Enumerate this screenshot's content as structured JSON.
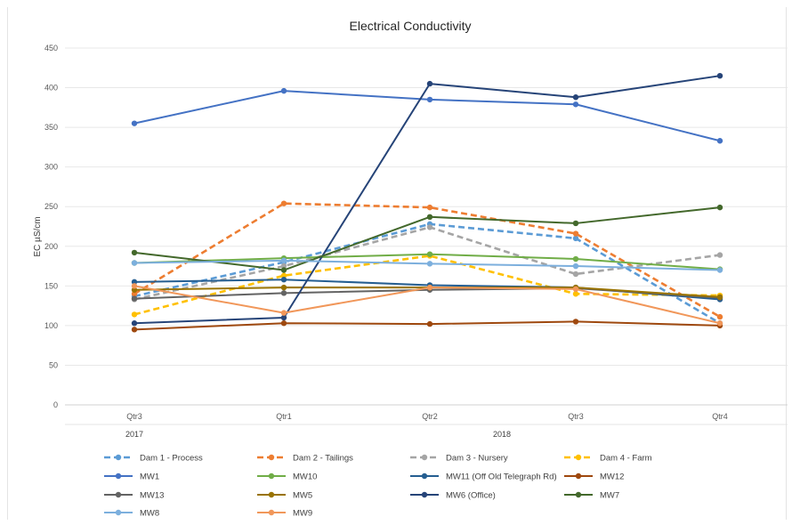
{
  "chart_data": {
    "type": "line",
    "title": "Electrical Conductivity",
    "ylabel": "EC µS/cm",
    "xlabel": "",
    "ylim": [
      0,
      450
    ],
    "yticks": [
      0,
      50,
      100,
      150,
      200,
      250,
      300,
      350,
      400,
      450
    ],
    "categories": [
      "Qtr3",
      "Qtr1",
      "Qtr2",
      "Qtr3",
      "Qtr4"
    ],
    "category_groups": [
      {
        "label": "2017",
        "start": 0,
        "end": 0
      },
      {
        "label": "2018",
        "start": 1,
        "end": 4
      }
    ],
    "grid": true,
    "legend_position": "bottom",
    "series": [
      {
        "name": "Dam 1 - Process",
        "color": "#5b9bd5",
        "dash": "dashed",
        "values": [
          137,
          180,
          228,
          210,
          103
        ]
      },
      {
        "name": "Dam 2 - Tailings",
        "color": "#ed7d31",
        "dash": "dashed",
        "values": [
          140,
          254,
          249,
          216,
          111
        ]
      },
      {
        "name": "Dam 3 - Nursery",
        "color": "#a5a5a5",
        "dash": "dashed",
        "values": [
          133,
          175,
          224,
          165,
          189
        ]
      },
      {
        "name": "Dam 4 - Farm",
        "color": "#ffc000",
        "dash": "dashed",
        "values": [
          114,
          163,
          188,
          140,
          138
        ]
      },
      {
        "name": "MW1",
        "color": "#4472c4",
        "dash": "solid",
        "values": [
          355,
          396,
          385,
          379,
          333
        ]
      },
      {
        "name": "MW10",
        "color": "#70ad47",
        "dash": "solid",
        "values": [
          179,
          185,
          190,
          184,
          171
        ]
      },
      {
        "name": "MW11 (Off Old Telegraph Rd)",
        "color": "#255e91",
        "dash": "solid",
        "values": [
          155,
          158,
          151,
          148,
          133
        ]
      },
      {
        "name": "MW12",
        "color": "#9e480e",
        "dash": "solid",
        "values": [
          95,
          103,
          102,
          105,
          100
        ]
      },
      {
        "name": "MW13",
        "color": "#636363",
        "dash": "solid",
        "values": [
          134,
          141,
          145,
          147,
          135
        ]
      },
      {
        "name": "MW5",
        "color": "#997300",
        "dash": "solid",
        "values": [
          145,
          148,
          148,
          148,
          136
        ]
      },
      {
        "name": "MW6 (Office)",
        "color": "#264478",
        "dash": "solid",
        "values": [
          103,
          110,
          405,
          388,
          415
        ]
      },
      {
        "name": "MW7",
        "color": "#43682b",
        "dash": "solid",
        "values": [
          192,
          170,
          237,
          229,
          249
        ]
      },
      {
        "name": "MW8",
        "color": "#7cafdd",
        "dash": "solid",
        "values": [
          179,
          182,
          178,
          175,
          170
        ]
      },
      {
        "name": "MW9",
        "color": "#f1975a",
        "dash": "solid",
        "values": [
          150,
          116,
          148,
          146,
          103
        ]
      }
    ]
  }
}
